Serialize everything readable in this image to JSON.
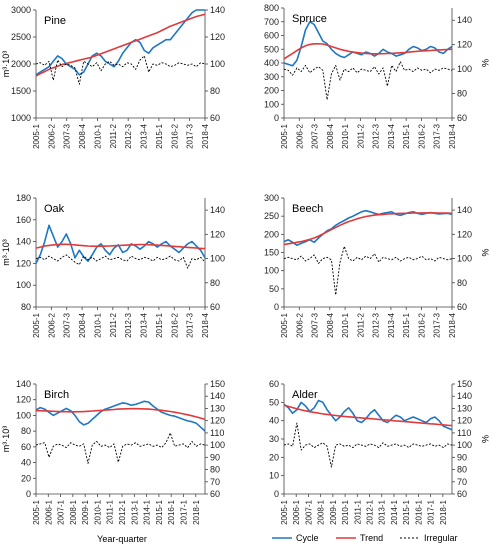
{
  "figure": {
    "x_axis_label": "Year-quarter",
    "colors": {
      "cycle": "#1f77c4",
      "trend": "#e03a3a",
      "irregular": "#000000"
    }
  },
  "legend": [
    {
      "key": "cycle",
      "label": "Cycle"
    },
    {
      "key": "trend",
      "label": "Trend"
    },
    {
      "key": "irregular",
      "label": "Irregular"
    }
  ],
  "chart_data": [
    {
      "type": "line",
      "title": "Pine",
      "ylabel": "m³·10³",
      "y2label": "",
      "ylim": [
        1000,
        3000
      ],
      "yticks": [
        1000,
        1500,
        2000,
        2500,
        3000
      ],
      "y2lim": [
        60,
        140
      ],
      "y2ticks": [
        60,
        80,
        100,
        120,
        140
      ],
      "xstart": [
        2005,
        1
      ],
      "xend": [
        2018,
        4
      ],
      "xticks": [
        "2005-1",
        "2006-2",
        "2007-3",
        "2008-4",
        "2010-1",
        "2011-2",
        "2012-3",
        "2013-4",
        "2015-1",
        "2016-2",
        "2017-3",
        "2018-4"
      ],
      "series": [
        {
          "name": "Cycle",
          "axis": "left",
          "values": [
            1800,
            1850,
            1900,
            1950,
            2050,
            2150,
            2100,
            2000,
            1950,
            1900,
            1800,
            1850,
            2000,
            2150,
            2200,
            2150,
            2050,
            2000,
            1950,
            2050,
            2200,
            2300,
            2400,
            2450,
            2400,
            2250,
            2200,
            2300,
            2350,
            2400,
            2450,
            2450,
            2550,
            2650,
            2750,
            2850,
            2950,
            3000,
            3000,
            3000
          ]
        },
        {
          "name": "Trend",
          "axis": "left",
          "values": [
            1780,
            1820,
            1860,
            1900,
            1930,
            1960,
            1990,
            2010,
            2030,
            2050,
            2070,
            2090,
            2110,
            2130,
            2160,
            2190,
            2220,
            2250,
            2280,
            2310,
            2340,
            2370,
            2400,
            2430,
            2460,
            2490,
            2520,
            2550,
            2580,
            2620,
            2660,
            2700,
            2730,
            2760,
            2790,
            2820,
            2850,
            2880,
            2900,
            2920
          ]
        },
        {
          "name": "Irregular",
          "axis": "right",
          "values": [
            100,
            101,
            99,
            102,
            88,
            103,
            98,
            100,
            99,
            97,
            85,
            102,
            100,
            98,
            101,
            95,
            100,
            102,
            99,
            100,
            98,
            101,
            100,
            96,
            103,
            106,
            94,
            100,
            99,
            101,
            100,
            98,
            99,
            101,
            100,
            99,
            100,
            98,
            101,
            100
          ]
        }
      ]
    },
    {
      "type": "line",
      "title": "Spruce",
      "ylabel": "",
      "y2label": "%",
      "ylim": [
        0,
        800
      ],
      "yticks": [
        0,
        100,
        200,
        300,
        400,
        500,
        600,
        700,
        800
      ],
      "y2lim": [
        60,
        150
      ],
      "y2ticks": [
        60,
        80,
        100,
        120,
        140
      ],
      "xstart": [
        2005,
        1
      ],
      "xend": [
        2018,
        4
      ],
      "xticks": [
        "2005-1",
        "2006-2",
        "2007-3",
        "2008-4",
        "2010-1",
        "2011-2",
        "2012-3",
        "2013-4",
        "2015-1",
        "2016-2",
        "2017-3",
        "2018-4"
      ],
      "series": [
        {
          "name": "Cycle",
          "axis": "left",
          "values": [
            400,
            390,
            380,
            420,
            520,
            640,
            700,
            680,
            620,
            560,
            540,
            500,
            470,
            450,
            440,
            460,
            480,
            470,
            460,
            480,
            470,
            450,
            470,
            500,
            480,
            470,
            450,
            460,
            470,
            500,
            520,
            510,
            490,
            500,
            520,
            510,
            480,
            470,
            500,
            520
          ]
        },
        {
          "name": "Trend",
          "axis": "left",
          "values": [
            430,
            450,
            470,
            490,
            510,
            525,
            535,
            540,
            540,
            538,
            530,
            520,
            510,
            500,
            492,
            485,
            480,
            476,
            473,
            470,
            468,
            467,
            467,
            468,
            469,
            470,
            472,
            474,
            476,
            479,
            482,
            485,
            487,
            489,
            491,
            493,
            495,
            497,
            498,
            500
          ]
        },
        {
          "name": "Irregular",
          "axis": "right",
          "values": [
            100,
            99,
            95,
            101,
            98,
            103,
            97,
            100,
            102,
            99,
            75,
            96,
            103,
            91,
            100,
            98,
            101,
            97,
            100,
            99,
            98,
            102,
            96,
            101,
            86,
            103,
            98,
            106,
            99,
            100,
            98,
            101,
            99,
            100,
            97,
            100,
            99,
            101,
            100,
            99
          ]
        }
      ]
    },
    {
      "type": "line",
      "title": "Oak",
      "ylabel": "m³·10³",
      "y2label": "",
      "ylim": [
        80,
        180
      ],
      "yticks": [
        80,
        100,
        120,
        140,
        160,
        180
      ],
      "y2lim": [
        60,
        150
      ],
      "y2ticks": [
        60,
        80,
        100,
        120,
        140
      ],
      "xstart": [
        2005,
        1
      ],
      "xend": [
        2018,
        4
      ],
      "xticks": [
        "2005-1",
        "2006-2",
        "2007-3",
        "2008-4",
        "2010-1",
        "2011-2",
        "2012-3",
        "2013-4",
        "2015-1",
        "2016-2",
        "2017-3",
        "2018-4"
      ],
      "series": [
        {
          "name": "Cycle",
          "axis": "left",
          "values": [
            120,
            128,
            140,
            155,
            145,
            135,
            140,
            147,
            138,
            125,
            132,
            126,
            122,
            128,
            135,
            138,
            132,
            128,
            134,
            137,
            130,
            132,
            138,
            136,
            133,
            136,
            140,
            138,
            135,
            138,
            140,
            136,
            133,
            130,
            134,
            138,
            140,
            136,
            132,
            125
          ]
        },
        {
          "name": "Trend",
          "axis": "left",
          "values": [
            134,
            135,
            136,
            136.5,
            137,
            137.3,
            137.5,
            137.5,
            137.3,
            137,
            136.6,
            136.2,
            136,
            135.8,
            135.8,
            135.8,
            135.9,
            136,
            136.2,
            136.4,
            136.6,
            136.8,
            137,
            137.2,
            137.3,
            137.3,
            137.2,
            137,
            136.8,
            136.5,
            136.2,
            135.9,
            135.6,
            135.3,
            135,
            134.7,
            134.4,
            134.1,
            133.8,
            133.5
          ]
        },
        {
          "name": "Irregular",
          "axis": "right",
          "values": [
            100,
            101,
            99,
            102,
            100,
            98,
            101,
            103,
            100,
            97,
            95,
            102,
            99,
            101,
            98,
            100,
            102,
            99,
            100,
            101,
            99,
            98,
            102,
            100,
            99,
            101,
            100,
            98,
            101,
            99,
            100,
            102,
            99,
            98,
            101,
            92,
            100,
            99,
            101,
            97
          ]
        }
      ]
    },
    {
      "type": "line",
      "title": "Beech",
      "ylabel": "",
      "y2label": "%",
      "ylim": [
        0,
        300
      ],
      "yticks": [
        0,
        50,
        100,
        150,
        200,
        250,
        300
      ],
      "y2lim": [
        60,
        150
      ],
      "y2ticks": [
        60,
        80,
        100,
        120,
        140
      ],
      "xstart": [
        2005,
        1
      ],
      "xend": [
        2018,
        4
      ],
      "xticks": [
        "2005-1",
        "2006-2",
        "2007-3",
        "2008-4",
        "2010-1",
        "2011-2",
        "2012-3",
        "2013-4",
        "2015-1",
        "2016-2",
        "2017-3",
        "2018-4"
      ],
      "series": [
        {
          "name": "Cycle",
          "axis": "left",
          "values": [
            180,
            185,
            178,
            170,
            175,
            180,
            185,
            178,
            190,
            200,
            210,
            215,
            225,
            232,
            238,
            245,
            250,
            256,
            262,
            265,
            262,
            258,
            255,
            258,
            260,
            262,
            255,
            252,
            256,
            260,
            262,
            258,
            255,
            258,
            260,
            258,
            256,
            257,
            258,
            255
          ]
        },
        {
          "name": "Trend",
          "axis": "left",
          "values": [
            172,
            174,
            176,
            178,
            180,
            183,
            186,
            190,
            195,
            201,
            207,
            213,
            219,
            225,
            230,
            235,
            239,
            243,
            246,
            249,
            251,
            253,
            254,
            255,
            256,
            256.5,
            257,
            257.5,
            258,
            258.3,
            258.6,
            258.8,
            259,
            259,
            259,
            259,
            258.8,
            258.6,
            258.4,
            258
          ]
        },
        {
          "name": "Irregular",
          "axis": "right",
          "values": [
            100,
            101,
            100,
            99,
            102,
            98,
            100,
            103,
            96,
            100,
            101,
            99,
            70,
            97,
            110,
            100,
            98,
            101,
            99,
            102,
            100,
            104,
            97,
            101,
            100,
            99,
            101,
            98,
            100,
            101,
            99,
            100,
            102,
            99,
            100,
            98,
            101,
            100,
            99,
            100
          ]
        }
      ]
    },
    {
      "type": "line",
      "title": "Birch",
      "ylabel": "m³·10³",
      "y2label": "",
      "ylim": [
        0,
        140
      ],
      "yticks": [
        0,
        20,
        40,
        60,
        80,
        100,
        120,
        140
      ],
      "y2lim": [
        60,
        150
      ],
      "y2ticks": [
        60,
        70,
        80,
        90,
        100,
        110,
        120,
        130,
        140,
        150
      ],
      "xstart": [
        2005,
        1
      ],
      "xend": [
        2018,
        4
      ],
      "xticks": [
        "2005-1",
        "2006-1",
        "2007-1",
        "2008-1",
        "2009-1",
        "2010-1",
        "2011-1",
        "2012-1",
        "2013-1",
        "2014-1",
        "2015-1",
        "2016-1",
        "2017-1",
        "2018-1"
      ],
      "series": [
        {
          "name": "Cycle",
          "axis": "left",
          "values": [
            107,
            110,
            108,
            104,
            100,
            103,
            106,
            109,
            106,
            100,
            92,
            88,
            90,
            95,
            100,
            105,
            108,
            110,
            112,
            114,
            116,
            115,
            113,
            114,
            116,
            118,
            117,
            112,
            108,
            104,
            102,
            100,
            99,
            97,
            95,
            93,
            92,
            90,
            85,
            80
          ]
        },
        {
          "name": "Trend",
          "axis": "left",
          "values": [
            106,
            106,
            105.8,
            105.5,
            105.2,
            105,
            104.8,
            104.7,
            104.6,
            104.6,
            104.7,
            104.9,
            105.2,
            105.6,
            106,
            106.4,
            106.8,
            107.2,
            107.6,
            108,
            108.3,
            108.5,
            108.6,
            108.6,
            108.5,
            108.3,
            108,
            107.6,
            107.1,
            106.5,
            105.8,
            105,
            104.1,
            103.1,
            102,
            100.8,
            99.5,
            98.1,
            96.6,
            95
          ]
        },
        {
          "name": "Irregular",
          "axis": "right",
          "values": [
            100,
            101,
            102,
            90,
            99,
            101,
            100,
            98,
            102,
            100,
            99,
            101,
            85,
            100,
            103,
            99,
            100,
            98,
            101,
            86,
            99,
            101,
            100,
            102,
            99,
            100,
            101,
            99,
            100,
            98,
            102,
            110,
            99,
            100,
            101,
            98,
            103,
            99,
            101,
            100
          ]
        }
      ]
    },
    {
      "type": "line",
      "title": "Alder",
      "ylabel": "",
      "y2label": "%",
      "ylim": [
        0,
        60
      ],
      "yticks": [
        0,
        10,
        20,
        30,
        40,
        50,
        60
      ],
      "y2lim": [
        60,
        150
      ],
      "y2ticks": [
        60,
        70,
        80,
        90,
        100,
        110,
        120,
        130,
        140,
        150
      ],
      "xstart": [
        2005,
        1
      ],
      "xend": [
        2018,
        4
      ],
      "xticks": [
        "2005-1",
        "2006-1",
        "2007-1",
        "2008-1",
        "2009-1",
        "2010-1",
        "2011-1",
        "2012-1",
        "2013-1",
        "2014-1",
        "2015-1",
        "2016-1",
        "2017-1",
        "2018-1"
      ],
      "series": [
        {
          "name": "Cycle",
          "axis": "left",
          "values": [
            49,
            47,
            44,
            46,
            50,
            48,
            45,
            47,
            51,
            50,
            46,
            43,
            40,
            42,
            45,
            47,
            44,
            40,
            39,
            41,
            44,
            46,
            43,
            40,
            39,
            41,
            43,
            42,
            40,
            41,
            42,
            41,
            40,
            39,
            41,
            42,
            40,
            37,
            36,
            35
          ]
        },
        {
          "name": "Trend",
          "axis": "left",
          "values": [
            48.5,
            47.8,
            47.1,
            46.5,
            45.9,
            45.4,
            44.9,
            44.5,
            44.1,
            43.7,
            43.4,
            43.1,
            42.8,
            42.5,
            42.3,
            42.1,
            41.9,
            41.7,
            41.5,
            41.3,
            41.1,
            40.9,
            40.7,
            40.5,
            40.3,
            40.1,
            39.9,
            39.7,
            39.5,
            39.3,
            39.1,
            38.9,
            38.7,
            38.5,
            38.3,
            38.1,
            37.9,
            37.7,
            37.5,
            37.3
          ]
        },
        {
          "name": "Irregular",
          "axis": "right",
          "values": [
            100,
            101,
            99,
            118,
            96,
            100,
            101,
            98,
            100,
            102,
            99,
            82,
            100,
            101,
            99,
            100,
            98,
            101,
            100,
            99,
            101,
            100,
            98,
            102,
            99,
            100,
            101,
            99,
            100,
            98,
            101,
            100,
            99,
            100,
            101,
            99,
            100,
            98,
            101,
            100
          ]
        }
      ]
    }
  ]
}
